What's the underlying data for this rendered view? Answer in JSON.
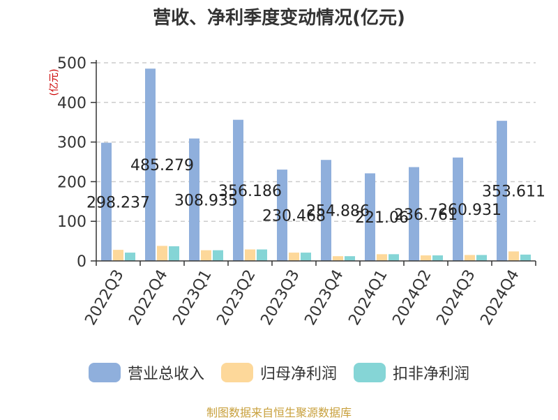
{
  "chart_data": {
    "type": "bar",
    "title": "营收、净利季度变动情况(亿元)",
    "ylabel": "(亿元)",
    "ylim": [
      0,
      500
    ],
    "yticks": [
      0,
      100,
      200,
      300,
      400,
      500
    ],
    "grid": true,
    "legend_position": "bottom",
    "categories": [
      "2022Q3",
      "2022Q4",
      "2023Q1",
      "2023Q2",
      "2023Q3",
      "2023Q4",
      "2024Q1",
      "2024Q2",
      "2024Q3",
      "2024Q4"
    ],
    "series": [
      {
        "name": "营业总收入",
        "color": "#8fafdc",
        "values": [
          298.237,
          485.279,
          308.935,
          356.186,
          230.468,
          254.886,
          221.06,
          236.761,
          260.931,
          353.611
        ],
        "labels": [
          "298.237",
          "485.279",
          "308.935",
          "356.186",
          "230.468",
          "254.886",
          "221.06",
          "236.761",
          "260.931",
          "353.611"
        ]
      },
      {
        "name": "归母净利润",
        "color": "#fdd89a",
        "values": [
          28,
          38,
          27,
          29,
          21,
          12,
          17,
          14,
          15,
          24
        ]
      },
      {
        "name": "扣非净利润",
        "color": "#85d5d6",
        "values": [
          21,
          37,
          27,
          29,
          21,
          12,
          17,
          14,
          15,
          16
        ]
      }
    ]
  },
  "footer": {
    "source": "制图数据来自恒生聚源数据库"
  }
}
